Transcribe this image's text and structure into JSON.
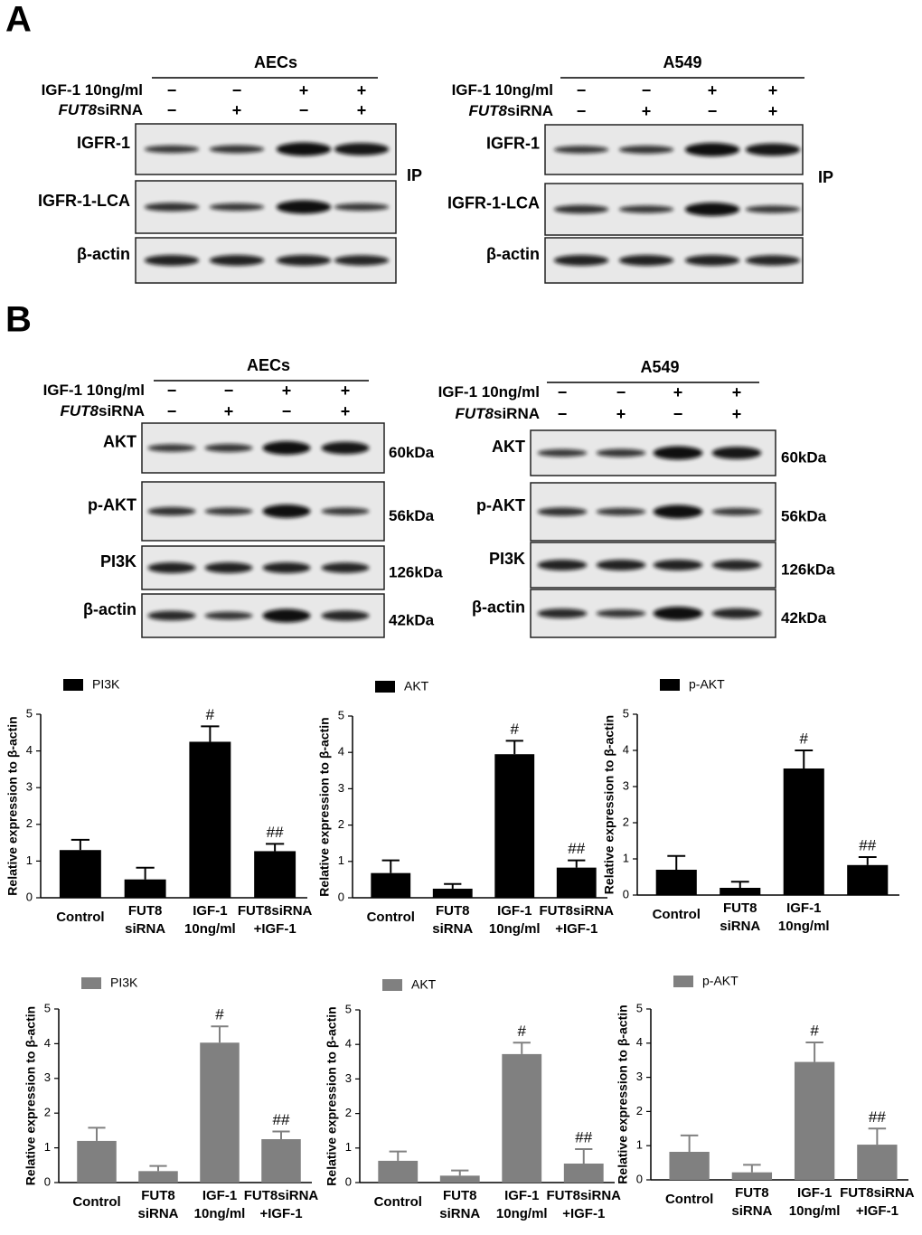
{
  "panel_labels": [
    "A",
    "B"
  ],
  "blots": [
    {
      "title": "AECs",
      "treatments": [
        {
          "label": "IGF-1 10ng/ml",
          "signs": [
            "−",
            "−",
            "+",
            "+"
          ]
        },
        {
          "italic": "FUT8",
          "label": "siRNA",
          "signs": [
            "−",
            "+",
            "−",
            "+"
          ]
        }
      ],
      "rows": [
        {
          "label": "IGFR-1"
        },
        {
          "label": "IGFR-1-LCA"
        },
        {
          "label": "β-actin"
        }
      ],
      "bracket": "IP"
    },
    {
      "title": "A549",
      "treatments": [
        {
          "label": "IGF-1 10ng/ml",
          "signs": [
            "−",
            "−",
            "+",
            "+"
          ]
        },
        {
          "italic": "FUT8",
          "label": "siRNA",
          "signs": [
            "−",
            "+",
            "−",
            "+"
          ]
        }
      ],
      "rows": [
        {
          "label": "IGFR-1"
        },
        {
          "label": "IGFR-1-LCA"
        },
        {
          "label": "β-actin"
        }
      ],
      "bracket": "IP"
    },
    {
      "title": "AECs",
      "treatments": [
        {
          "label": "IGF-1 10ng/ml",
          "signs": [
            "−",
            "−",
            "+",
            "+"
          ]
        },
        {
          "italic": "FUT8",
          "label": "siRNA",
          "signs": [
            "−",
            "+",
            "−",
            "+"
          ]
        }
      ],
      "rows": [
        {
          "label": "AKT",
          "size": "60kDa"
        },
        {
          "label": "p-AKT",
          "size": "56kDa"
        },
        {
          "label": "PI3K",
          "size": "126kDa"
        },
        {
          "label": "β-actin",
          "size": "42kDa"
        }
      ]
    },
    {
      "title": "A549",
      "treatments": [
        {
          "label": "IGF-1 10ng/ml",
          "signs": [
            "−",
            "−",
            "+",
            "+"
          ]
        },
        {
          "italic": "FUT8",
          "label": "siRNA",
          "signs": [
            "−",
            "+",
            "−",
            "+"
          ]
        }
      ],
      "rows": [
        {
          "label": "AKT",
          "size": "60kDa"
        },
        {
          "label": "p-AKT",
          "size": "56kDa"
        },
        {
          "label": "PI3K",
          "size": "126kDa"
        },
        {
          "label": "β-actin",
          "size": "42kDa"
        }
      ]
    }
  ],
  "chart_data": [
    {
      "type": "bar",
      "y_label": "Relative expression to β-actin",
      "categories": [
        "Control",
        "FUT8 siRNA",
        "IGF-1 10ng/ml",
        "FUT8siRNA +IGF-1"
      ],
      "series": [
        {
          "name": "PI3K",
          "color": "#000000",
          "values": [
            1.3,
            0.5,
            4.25,
            1.27
          ],
          "errors": [
            0.28,
            0.32,
            0.42,
            0.2
          ],
          "annotations": [
            null,
            null,
            "#",
            "##"
          ]
        }
      ],
      "ylim": [
        0,
        5
      ],
      "yticks": [
        0,
        1,
        2,
        3,
        4,
        5
      ]
    },
    {
      "type": "bar",
      "y_label": "Relative expression to β-actin",
      "categories": [
        "Control",
        "FUT8 siRNA",
        "IGF-1 10ng/ml",
        "FUT8siRNA +IGF-1"
      ],
      "series": [
        {
          "name": "AKT",
          "color": "#000000",
          "values": [
            0.68,
            0.25,
            3.95,
            0.83
          ],
          "errors": [
            0.35,
            0.13,
            0.37,
            0.2
          ],
          "annotations": [
            null,
            null,
            "#",
            "##"
          ]
        }
      ],
      "ylim": [
        0,
        5
      ],
      "yticks": [
        0,
        1,
        2,
        3,
        4,
        5
      ]
    },
    {
      "type": "bar",
      "y_label": "Relative expression to β-actin",
      "categories": [
        "Control",
        "FUT8 siRNA",
        "IGF-1 10ng/ml",
        null
      ],
      "series": [
        {
          "name": "p-AKT",
          "color": "#000000",
          "values": [
            0.7,
            0.2,
            3.5,
            0.83
          ],
          "errors": [
            0.38,
            0.17,
            0.5,
            0.22
          ],
          "annotations": [
            null,
            null,
            "#",
            "##"
          ]
        }
      ],
      "ylim": [
        0,
        5
      ],
      "yticks": [
        0,
        1,
        2,
        3,
        4,
        5
      ]
    },
    {
      "type": "bar",
      "y_label": "Relative expression to β-actin",
      "categories": [
        "Control",
        "FUT8 siRNA",
        "IGF-1 10ng/ml",
        "FUT8siRNA +IGF-1"
      ],
      "series": [
        {
          "name": "PI3K",
          "color": "#808080",
          "values": [
            1.2,
            0.33,
            4.03,
            1.25
          ],
          "errors": [
            0.38,
            0.15,
            0.47,
            0.22
          ],
          "annotations": [
            null,
            null,
            "#",
            "##"
          ]
        }
      ],
      "ylim": [
        0,
        5
      ],
      "yticks": [
        0,
        1,
        2,
        3,
        4,
        5
      ]
    },
    {
      "type": "bar",
      "y_label": "Relative expression to β-actin",
      "categories": [
        "Control",
        "FUT8 siRNA",
        "IGF-1 10ng/ml",
        "FUT8siRNA +IGF-1"
      ],
      "series": [
        {
          "name": "AKT",
          "color": "#808080",
          "values": [
            0.63,
            0.2,
            3.72,
            0.55
          ],
          "errors": [
            0.27,
            0.15,
            0.33,
            0.42
          ],
          "annotations": [
            null,
            null,
            "#",
            "##"
          ]
        }
      ],
      "ylim": [
        0,
        5
      ],
      "yticks": [
        0,
        1,
        2,
        3,
        4,
        5
      ]
    },
    {
      "type": "bar",
      "y_label": "Relative expression to β-actin",
      "categories": [
        "Control",
        "FUT8 siRNA",
        "IGF-1 10ng/ml",
        "FUT8siRNA +IGF-1"
      ],
      "series": [
        {
          "name": "p-AKT",
          "color": "#808080",
          "values": [
            0.82,
            0.22,
            3.45,
            1.03
          ],
          "errors": [
            0.48,
            0.22,
            0.57,
            0.47
          ],
          "annotations": [
            null,
            null,
            "#",
            "##"
          ]
        }
      ],
      "ylim": [
        0,
        5
      ],
      "yticks": [
        0,
        1,
        2,
        3,
        4,
        5
      ]
    }
  ]
}
